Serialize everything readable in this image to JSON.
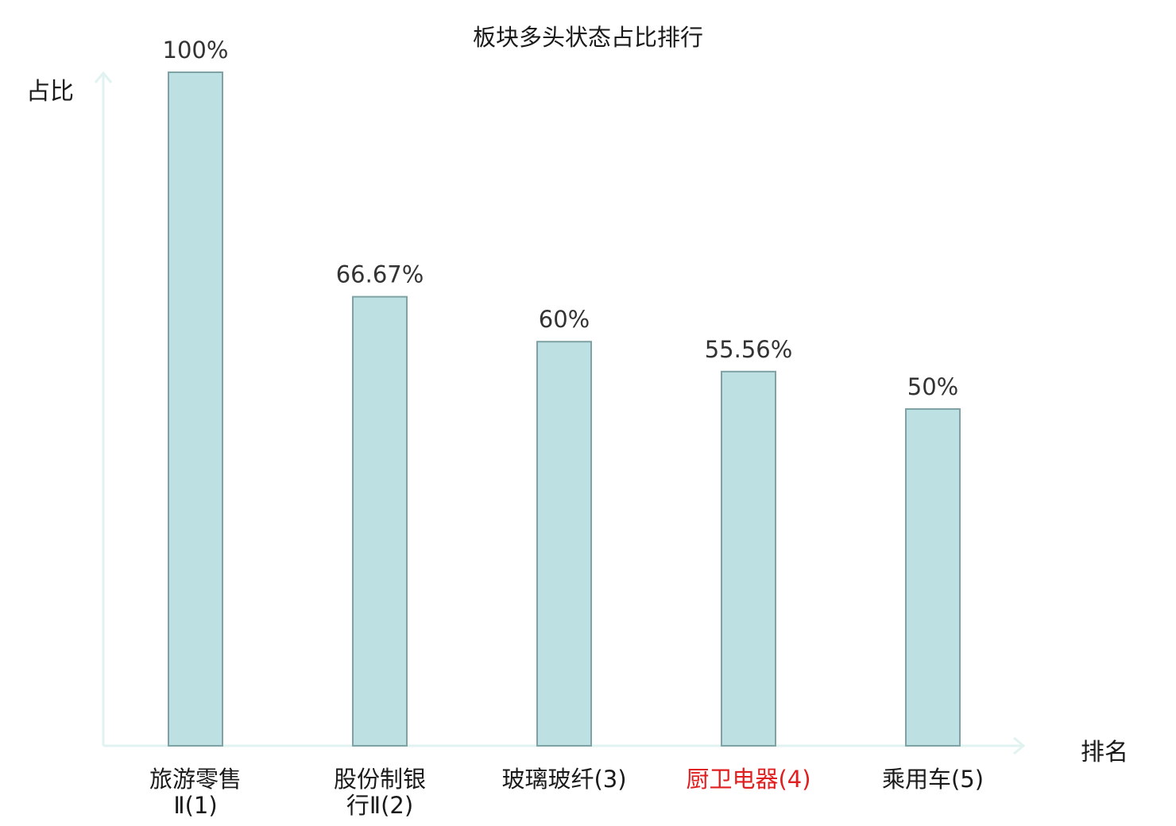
{
  "chart_data": {
    "type": "bar",
    "title": "板块多头状态占比排行",
    "xlabel": "排名",
    "ylabel": "占比",
    "categories": [
      {
        "lines": [
          "旅游零售",
          "Ⅱ(1)"
        ]
      },
      {
        "lines": [
          "股份制银",
          "行Ⅱ(2)"
        ]
      },
      {
        "lines": [
          "玻璃玻纤(3)"
        ]
      },
      {
        "lines": [
          "厨卫电器(4)"
        ],
        "highlight": true
      },
      {
        "lines": [
          "乘用车(5)"
        ]
      }
    ],
    "values": [
      100,
      66.67,
      60,
      55.56,
      50
    ],
    "value_labels": [
      "100%",
      "66.67%",
      "60%",
      "55.56%",
      "50%"
    ],
    "ylim": [
      0,
      100
    ],
    "grid": false,
    "legend": "none"
  },
  "colors": {
    "bar_fill": "#bde1e2",
    "bar_stroke": "#7fa3a5",
    "axis": "#e1f3f0",
    "text": "#1a1a1a",
    "value_text": "#333333",
    "highlight": "#e02020"
  }
}
